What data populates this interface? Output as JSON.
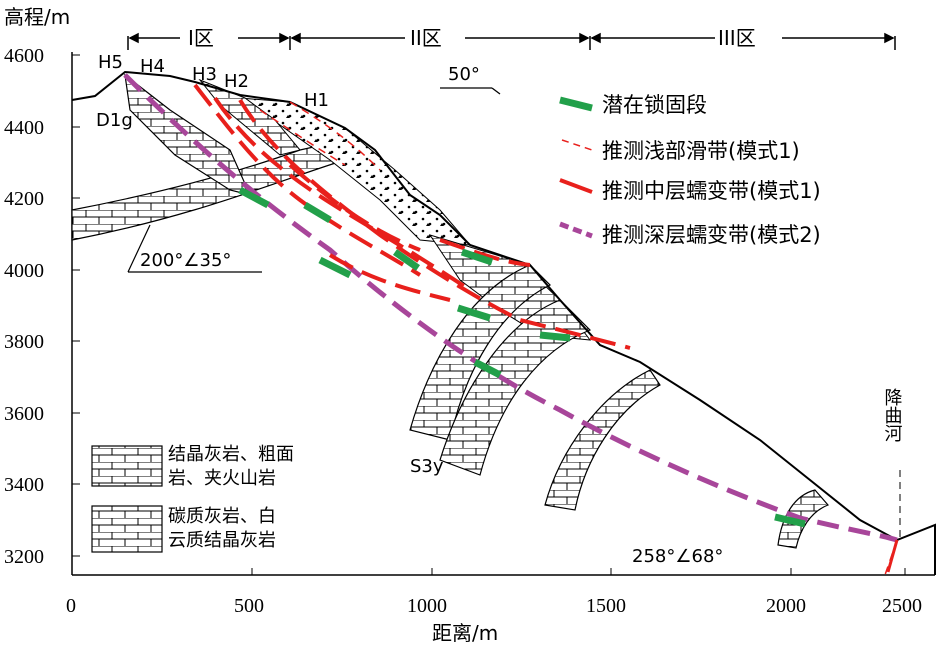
{
  "axes": {
    "y_title": "高程/m",
    "x_title": "距离/m",
    "y_ticks": [
      "4600",
      "4400",
      "4200",
      "4000",
      "3800",
      "3600",
      "3400",
      "3200"
    ],
    "x_ticks": [
      "0",
      "500",
      "1000",
      "1500",
      "2000",
      "2500"
    ]
  },
  "zones": {
    "zone1": "I区",
    "zone2": "II区",
    "zone3": "III区"
  },
  "labels": {
    "h5": "H5",
    "h4": "H4",
    "h3": "H3",
    "h2": "H2",
    "h1": "H1",
    "d1g": "D1g",
    "s3y": "S3y",
    "strike_top": "50°",
    "attitude1": "200°∠35°",
    "attitude2": "258°∠68°",
    "river": "降曲河"
  },
  "legend": {
    "locked": "潜在锁固段",
    "shallow": "推测浅部滑带(模式1)",
    "middle": "推测中层蠕变带(模式1)",
    "deep": "推测深层蠕变带(模式2)"
  },
  "lith_legend": {
    "l1a": "结晶灰岩、粗面",
    "l1b": "岩、夹火山岩",
    "l2a": "碳质灰岩、白",
    "l2b": "云质结晶灰岩"
  },
  "colors": {
    "locked": "#22a04a",
    "red": "#e8201c",
    "deep": "#a8469a"
  }
}
